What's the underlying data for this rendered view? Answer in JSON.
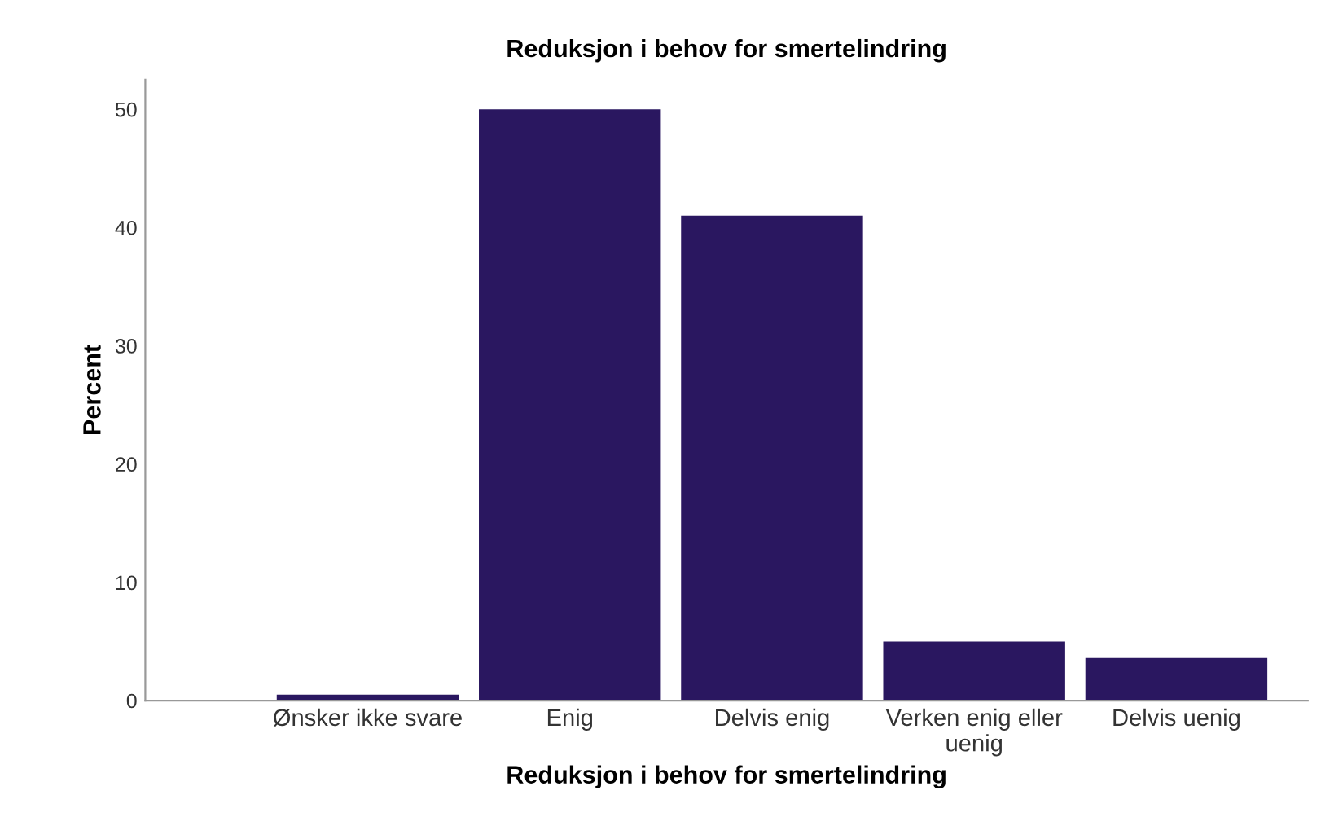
{
  "chart_data": {
    "type": "bar",
    "title": "Reduksjon i behov for smertelindring",
    "xlabel": "Reduksjon i behov for smertelindring",
    "ylabel": "Percent",
    "categories": [
      "Ønsker ikke svare",
      "Enig",
      "Delvis enig",
      "Verken enig eller uenig",
      "Delvis uenig"
    ],
    "values": [
      0.5,
      50,
      41,
      5,
      3.6
    ],
    "color": "#2a1760",
    "ylim": [
      0,
      52.5
    ],
    "yticks": [
      0,
      10,
      20,
      30,
      40,
      50
    ],
    "grid": false,
    "legend": false
  }
}
